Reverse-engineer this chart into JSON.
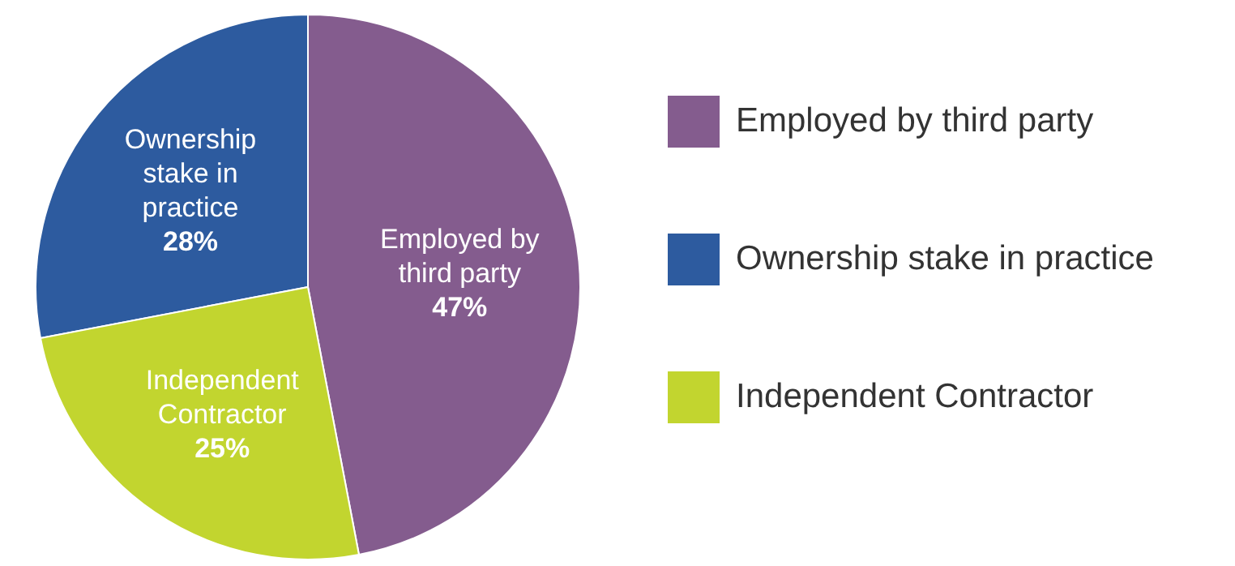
{
  "chart_data": {
    "type": "pie",
    "categories": [
      "Employed by third party",
      "Ownership stake in practice",
      "Independent Contractor"
    ],
    "values": [
      47,
      28,
      25
    ],
    "colors": [
      "#845c8e",
      "#2d5b9f",
      "#c2d52f"
    ],
    "value_labels": [
      "47%",
      "28%",
      "25%"
    ],
    "legend": "right"
  }
}
